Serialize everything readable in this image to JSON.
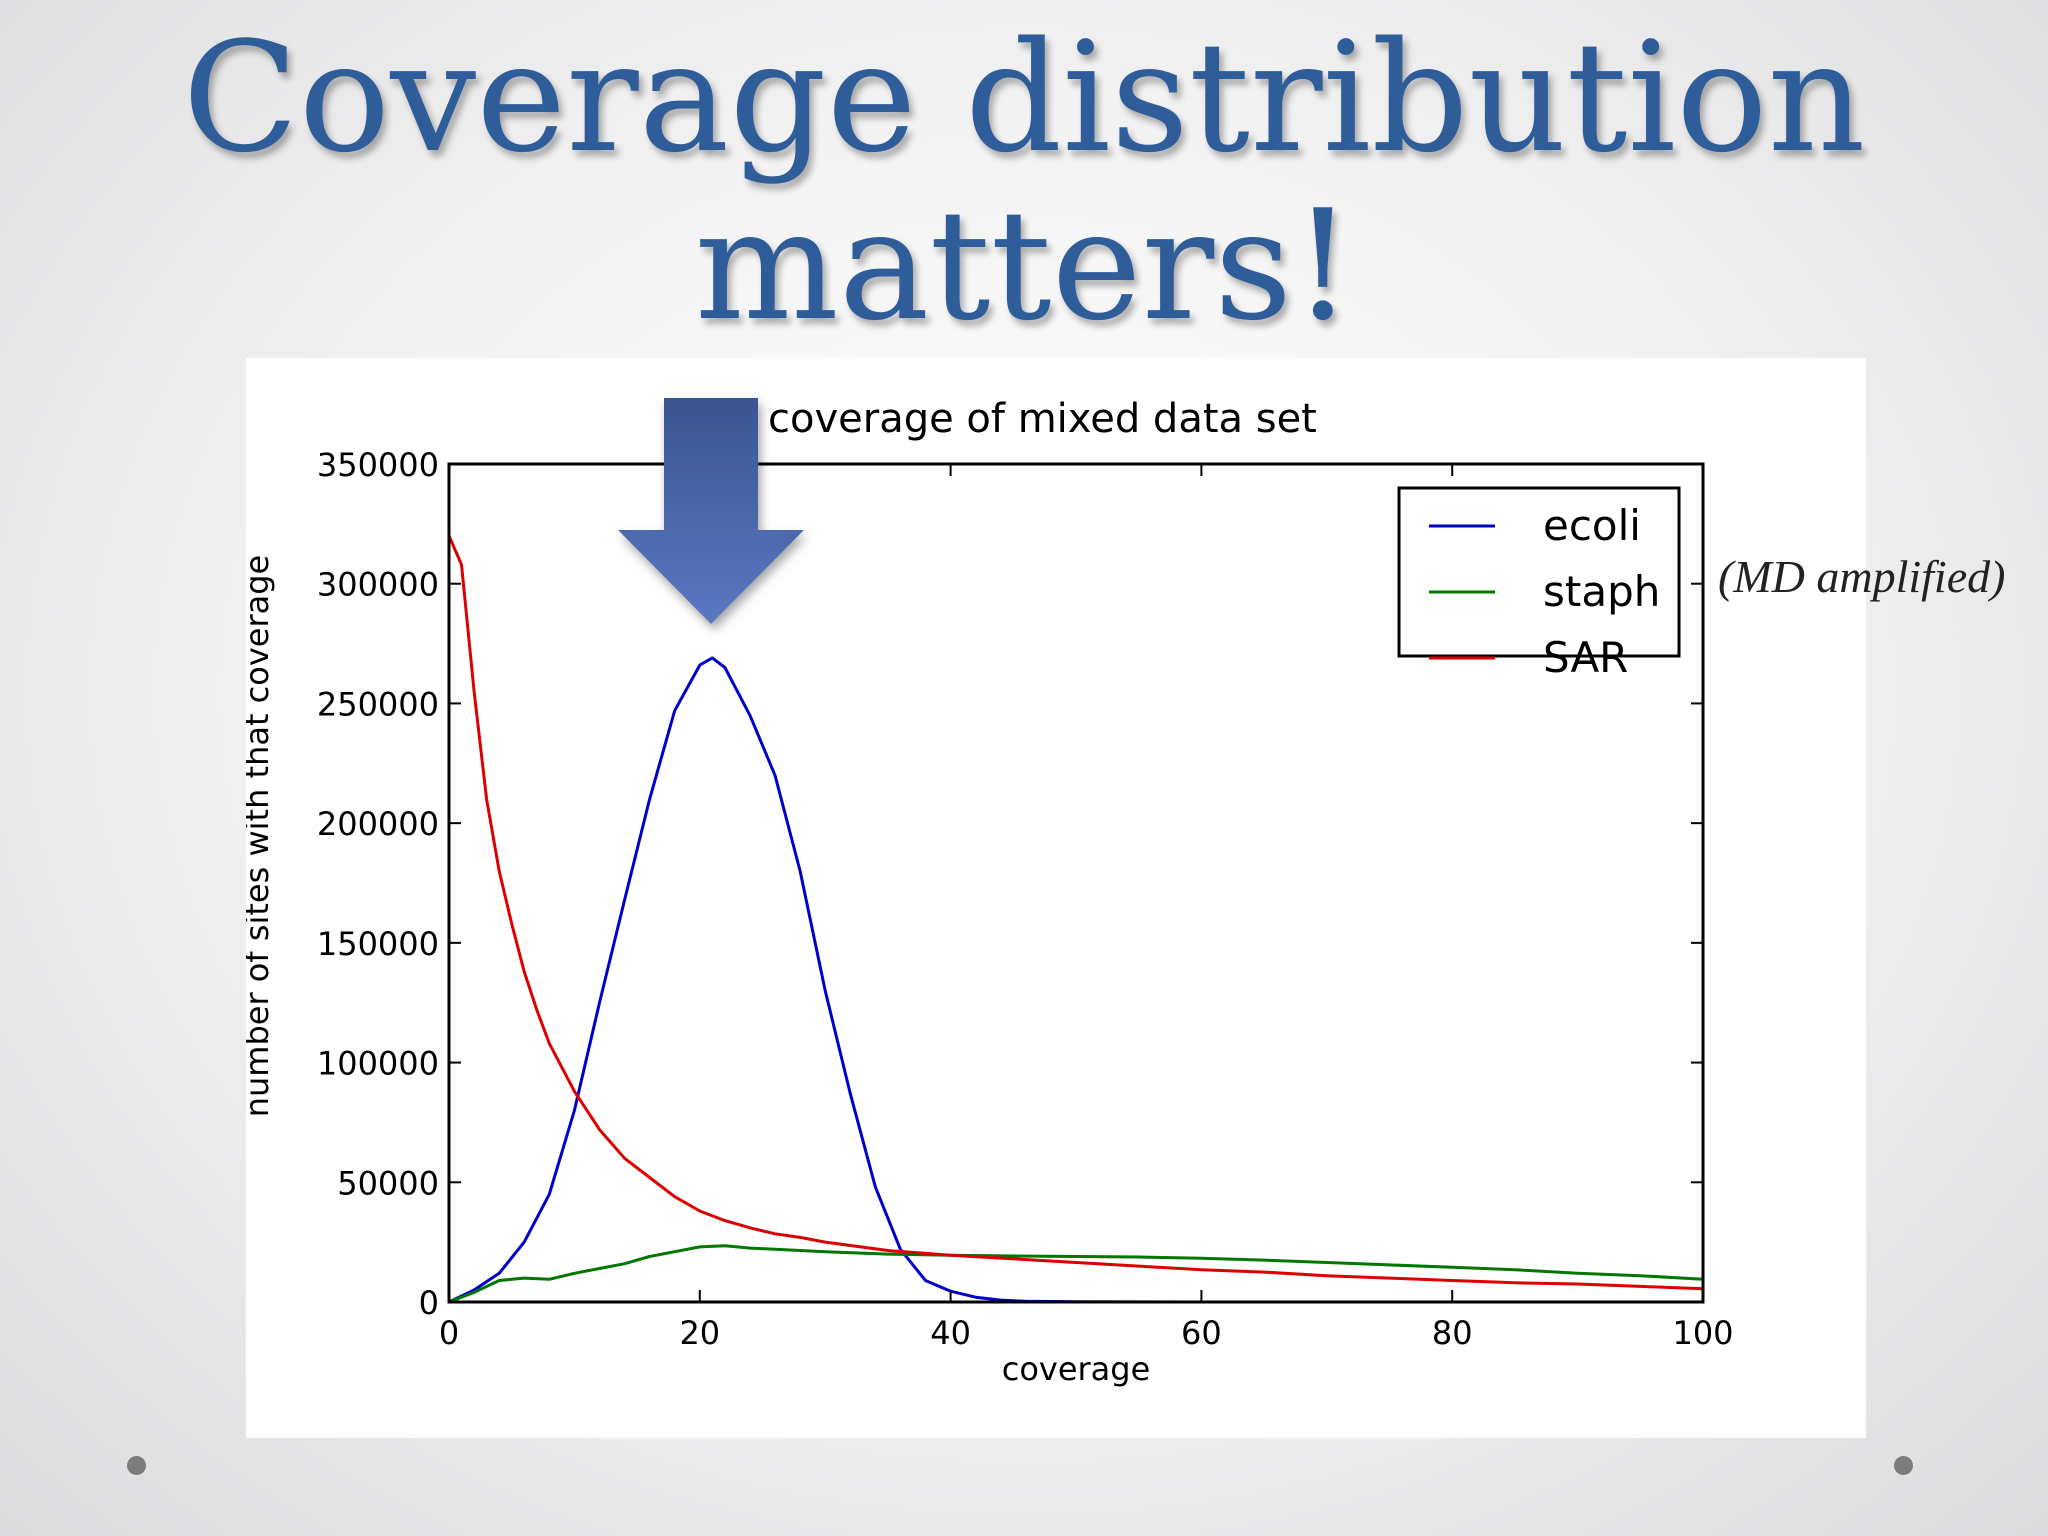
{
  "slide": {
    "title": "Coverage distribution matters!",
    "annotation": "(MD amplified)"
  },
  "colors": {
    "title": "#2f5d9a",
    "arrow": "#4a66ab"
  },
  "chart_data": {
    "type": "line",
    "title": "coverage of mixed data set",
    "xlabel": "coverage",
    "ylabel": "number of sites with that coverage",
    "xlim": [
      0,
      100
    ],
    "ylim": [
      0,
      350000
    ],
    "xticks": [
      "0",
      "20",
      "40",
      "60",
      "80",
      "100"
    ],
    "yticks": [
      "0",
      "50000",
      "100000",
      "150000",
      "200000",
      "250000",
      "300000",
      "350000"
    ],
    "grid": false,
    "legend_position": "top-right",
    "series": [
      {
        "name": "ecoli",
        "color": "#0000cc",
        "x": [
          0,
          2,
          4,
          6,
          8,
          10,
          12,
          14,
          16,
          18,
          20,
          21,
          22,
          24,
          26,
          28,
          30,
          32,
          34,
          36,
          38,
          40,
          42,
          44,
          46,
          50,
          60,
          70,
          80,
          90,
          100
        ],
        "y": [
          0,
          5000,
          12000,
          25000,
          45000,
          80000,
          125000,
          168000,
          210000,
          247000,
          266000,
          269000,
          265000,
          245000,
          220000,
          180000,
          130000,
          87000,
          48000,
          22000,
          9000,
          4500,
          2000,
          800,
          300,
          100,
          0,
          0,
          0,
          0,
          0
        ]
      },
      {
        "name": "staph",
        "color": "#007700",
        "x": [
          0,
          2,
          4,
          6,
          8,
          10,
          12,
          14,
          16,
          18,
          20,
          22,
          24,
          26,
          28,
          30,
          35,
          40,
          45,
          50,
          55,
          60,
          65,
          70,
          75,
          80,
          85,
          90,
          95,
          100
        ],
        "y": [
          0,
          4000,
          9000,
          10000,
          9500,
          12000,
          14000,
          16000,
          19000,
          21000,
          23000,
          23500,
          22500,
          22000,
          21500,
          21000,
          20000,
          19500,
          19200,
          19000,
          18800,
          18300,
          17500,
          16500,
          15500,
          14500,
          13500,
          12000,
          11000,
          9500
        ]
      },
      {
        "name": "SAR",
        "color": "#dd0000",
        "x": [
          0,
          1,
          2,
          3,
          4,
          5,
          6,
          7,
          8,
          9,
          10,
          12,
          14,
          16,
          18,
          20,
          22,
          24,
          26,
          28,
          30,
          35,
          40,
          45,
          50,
          55,
          60,
          65,
          70,
          75,
          80,
          85,
          90,
          95,
          100
        ],
        "y": [
          320000,
          308000,
          255000,
          210000,
          180000,
          158000,
          138000,
          122000,
          108000,
          98000,
          88000,
          72000,
          60000,
          52000,
          44000,
          38000,
          34000,
          31000,
          28500,
          27000,
          25000,
          21500,
          19500,
          18000,
          16500,
          15000,
          13500,
          12500,
          11000,
          10000,
          9000,
          8000,
          7500,
          6500,
          5500
        ]
      }
    ]
  }
}
